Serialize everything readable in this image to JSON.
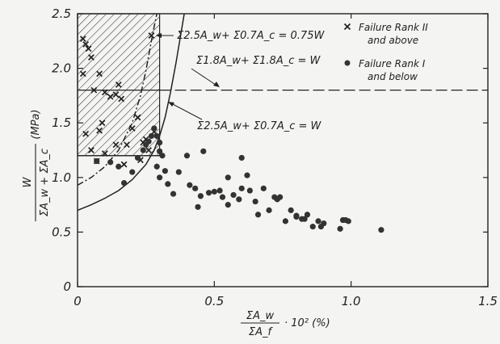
{
  "chart_data": {
    "type": "scatter",
    "xlim": [
      0,
      1.5
    ],
    "ylim": [
      0,
      2.5
    ],
    "x_ticks": [
      "0",
      "0.5",
      "1.0",
      "1.5"
    ],
    "y_ticks": [
      "0",
      "0.5",
      "1.0",
      "1.5",
      "2.0",
      "2.5"
    ],
    "xlabel": {
      "numerator": "ΣA_w",
      "denominator": "ΣA_f",
      "suffix": "· 10² (%)"
    },
    "ylabel": {
      "numerator": "W",
      "denominator": "ΣA_w + ΣA_c",
      "unit": "(MPa)"
    },
    "legend": {
      "position": "top-right",
      "items": [
        {
          "marker": "x",
          "label_line1": "Failure Rank II",
          "label_line2": "and above"
        },
        {
          "marker": "dot",
          "label_line1": "Failure Rank I",
          "label_line2": "and below"
        }
      ]
    },
    "annotations": [
      {
        "text": "Σ2.5A_w+ Σ0.7A_c = 0.75W"
      },
      {
        "text": "Σ1.8A_w+ Σ1.8A_c = W"
      },
      {
        "text": "Σ2.5A_w+ Σ0.7A_c = W"
      }
    ],
    "hatched_region": {
      "x": [
        0,
        0.3
      ],
      "y": [
        1.2,
        2.5
      ]
    },
    "reference_lines": [
      {
        "orientation": "horizontal",
        "y": 1.8,
        "style": "dashed",
        "x_from": 0.3,
        "x_to": 1.5
      },
      {
        "orientation": "horizontal",
        "y": 1.8,
        "style": "solid",
        "x_from": 0,
        "x_to": 0.3
      },
      {
        "orientation": "horizontal",
        "y": 1.2,
        "style": "solid",
        "x_from": 0,
        "x_to": 0.3
      }
    ],
    "curves": [
      {
        "name": "Σ2.5A_w+ Σ0.7A_c = W",
        "style": "solid",
        "x": [
          0,
          0.05,
          0.1,
          0.15,
          0.2,
          0.25,
          0.28,
          0.3,
          0.32,
          0.34,
          0.36,
          0.38,
          0.39,
          0.4
        ],
        "y": [
          0.7,
          0.75,
          0.81,
          0.88,
          0.98,
          1.12,
          1.25,
          1.38,
          1.55,
          1.78,
          2.05,
          2.35,
          2.5,
          2.55
        ]
      },
      {
        "name": "Σ2.5A_w+ Σ0.7A_c = 0.75W",
        "style": "dash-dot",
        "x": [
          0,
          0.05,
          0.1,
          0.15,
          0.2,
          0.23,
          0.25,
          0.27,
          0.28,
          0.29
        ],
        "y": [
          0.93,
          1.0,
          1.1,
          1.25,
          1.5,
          1.75,
          1.98,
          2.25,
          2.38,
          2.5
        ]
      }
    ],
    "series": [
      {
        "name": "Failure Rank II and above",
        "marker": "x",
        "points": [
          [
            0.02,
            2.27
          ],
          [
            0.03,
            2.22
          ],
          [
            0.04,
            2.18
          ],
          [
            0.05,
            2.1
          ],
          [
            0.02,
            1.95
          ],
          [
            0.08,
            1.95
          ],
          [
            0.06,
            1.8
          ],
          [
            0.1,
            1.78
          ],
          [
            0.12,
            1.74
          ],
          [
            0.14,
            1.76
          ],
          [
            0.15,
            1.85
          ],
          [
            0.16,
            1.72
          ],
          [
            0.09,
            1.5
          ],
          [
            0.08,
            1.43
          ],
          [
            0.03,
            1.4
          ],
          [
            0.05,
            1.25
          ],
          [
            0.1,
            1.22
          ],
          [
            0.14,
            1.3
          ],
          [
            0.18,
            1.3
          ],
          [
            0.2,
            1.45
          ],
          [
            0.22,
            1.55
          ],
          [
            0.24,
            1.32
          ],
          [
            0.25,
            1.35
          ],
          [
            0.26,
            1.25
          ],
          [
            0.07,
            1.15
          ],
          [
            0.17,
            1.12
          ],
          [
            0.23,
            1.16
          ],
          [
            0.28,
            1.42
          ],
          [
            0.27,
            2.3
          ]
        ]
      },
      {
        "name": "Failure Rank I and below",
        "marker": "dot",
        "points": [
          [
            0.07,
            1.15
          ],
          [
            0.12,
            1.14
          ],
          [
            0.15,
            1.1
          ],
          [
            0.17,
            0.95
          ],
          [
            0.2,
            1.05
          ],
          [
            0.22,
            1.18
          ],
          [
            0.24,
            1.25
          ],
          [
            0.25,
            1.3
          ],
          [
            0.26,
            1.33
          ],
          [
            0.27,
            1.38
          ],
          [
            0.28,
            1.45
          ],
          [
            0.29,
            1.38
          ],
          [
            0.3,
            1.32
          ],
          [
            0.3,
            1.24
          ],
          [
            0.31,
            1.2
          ],
          [
            0.32,
            1.06
          ],
          [
            0.29,
            1.1
          ],
          [
            0.3,
            1.0
          ],
          [
            0.33,
            0.94
          ],
          [
            0.35,
            0.85
          ],
          [
            0.37,
            1.05
          ],
          [
            0.4,
            1.2
          ],
          [
            0.41,
            0.93
          ],
          [
            0.43,
            0.9
          ],
          [
            0.44,
            0.73
          ],
          [
            0.45,
            0.83
          ],
          [
            0.46,
            1.24
          ],
          [
            0.48,
            0.86
          ],
          [
            0.5,
            0.87
          ],
          [
            0.52,
            0.88
          ],
          [
            0.53,
            0.82
          ],
          [
            0.55,
            1.0
          ],
          [
            0.55,
            0.75
          ],
          [
            0.57,
            0.84
          ],
          [
            0.59,
            0.8
          ],
          [
            0.6,
            0.9
          ],
          [
            0.6,
            1.18
          ],
          [
            0.62,
            1.02
          ],
          [
            0.63,
            0.88
          ],
          [
            0.65,
            0.78
          ],
          [
            0.66,
            0.66
          ],
          [
            0.68,
            0.9
          ],
          [
            0.7,
            0.7
          ],
          [
            0.72,
            0.82
          ],
          [
            0.73,
            0.8
          ],
          [
            0.74,
            0.82
          ],
          [
            0.76,
            0.6
          ],
          [
            0.78,
            0.7
          ],
          [
            0.8,
            0.65
          ],
          [
            0.8,
            0.64
          ],
          [
            0.82,
            0.62
          ],
          [
            0.83,
            0.62
          ],
          [
            0.84,
            0.66
          ],
          [
            0.86,
            0.55
          ],
          [
            0.88,
            0.6
          ],
          [
            0.89,
            0.55
          ],
          [
            0.9,
            0.58
          ],
          [
            0.96,
            0.53
          ],
          [
            0.97,
            0.61
          ],
          [
            0.98,
            0.61
          ],
          [
            0.99,
            0.6
          ],
          [
            1.11,
            0.52
          ]
        ]
      }
    ]
  }
}
